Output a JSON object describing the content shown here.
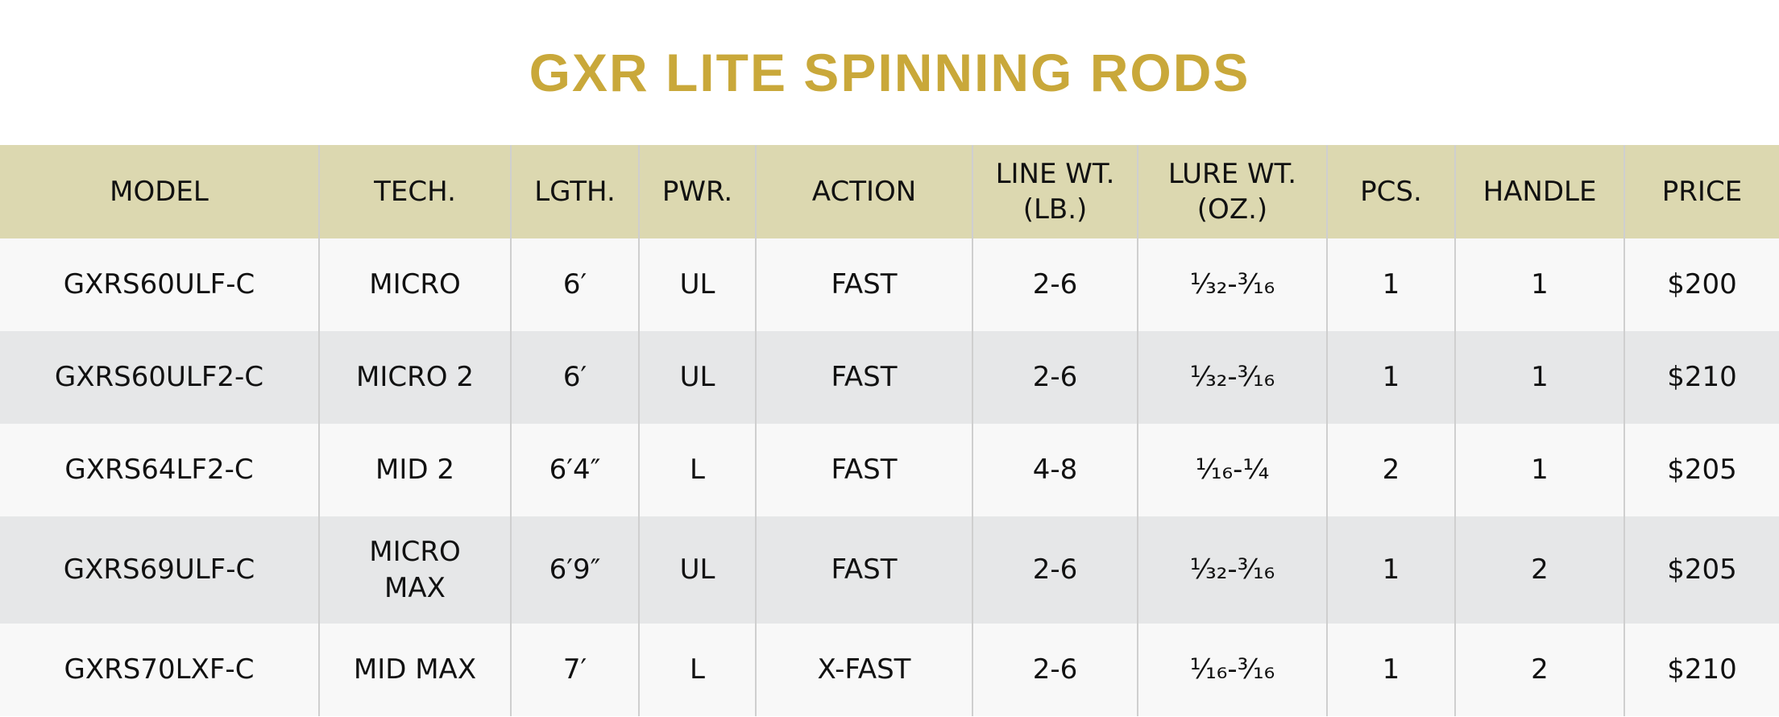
{
  "header": {
    "title": "GXR LITE SPINNING RODS"
  },
  "table": {
    "columns": [
      "MODEL",
      "TECH.",
      "LGTH.",
      "PWR.",
      "ACTION",
      "LINE WT.\n(LB.)",
      "LURE WT.\n(OZ.)",
      "PCS.",
      "HANDLE",
      "PRICE"
    ],
    "rows": [
      [
        "GXRS60ULF-C",
        "MICRO",
        "6′",
        "UL",
        "FAST",
        "2-6",
        "¹⁄₃₂-³⁄₁₆",
        "1",
        "1",
        "$200"
      ],
      [
        "GXRS60ULF2-C",
        "MICRO 2",
        "6′",
        "UL",
        "FAST",
        "2-6",
        "¹⁄₃₂-³⁄₁₆",
        "1",
        "1",
        "$210"
      ],
      [
        "GXRS64LF2-C",
        "MID 2",
        "6′4″",
        "L",
        "FAST",
        "4-8",
        "¹⁄₁₆-¼",
        "2",
        "1",
        "$205"
      ],
      [
        "GXRS69ULF-C",
        "MICRO\nMAX",
        "6′9″",
        "UL",
        "FAST",
        "2-6",
        "¹⁄₃₂-³⁄₁₆",
        "1",
        "2",
        "$205"
      ],
      [
        "GXRS70LXF-C",
        "MID MAX",
        "7′",
        "L",
        "X-FAST",
        "2-6",
        "¹⁄₁₆-³⁄₁₆",
        "1",
        "2",
        "$210"
      ]
    ]
  }
}
